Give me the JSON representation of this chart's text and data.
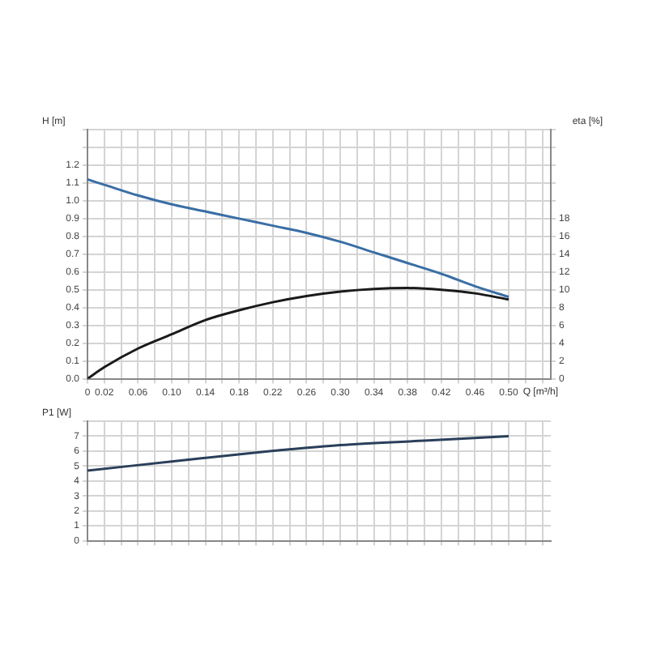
{
  "chart_data": [
    {
      "type": "line",
      "xlabel": "Q [m³/h]",
      "ylabel": "H [m]",
      "y2label": "eta [%]",
      "grid": true,
      "marker": "none",
      "line_style": "solid",
      "x": [
        0,
        0.02,
        0.06,
        0.1,
        0.14,
        0.18,
        0.22,
        0.26,
        0.3,
        0.34,
        0.38,
        0.42,
        0.46,
        0.5
      ],
      "series": [
        {
          "color": "#3a6ea5",
          "values": [
            1.12,
            1.09,
            1.03,
            0.98,
            0.94,
            0.9,
            0.86,
            0.82,
            0.77,
            0.71,
            0.65,
            0.59,
            0.52,
            0.46
          ]
        },
        {
          "color": "#1a1a1a",
          "axis": "y2",
          "values": [
            0,
            1.3,
            3.4,
            5.0,
            6.6,
            7.7,
            8.6,
            9.3,
            9.8,
            10.1,
            10.2,
            10.0,
            9.6,
            8.9
          ]
        }
      ],
      "xlim": [
        0,
        0.55
      ],
      "xticks": [
        {
          "value": 0,
          "label": "0"
        },
        {
          "value": 0.02,
          "label": "0.02"
        },
        {
          "value": 0.04,
          "label": null
        },
        {
          "value": 0.06,
          "label": "0.06"
        },
        {
          "value": 0.08,
          "label": null
        },
        {
          "value": 0.1,
          "label": "0.10"
        },
        {
          "value": 0.12,
          "label": null
        },
        {
          "value": 0.14,
          "label": "0.14"
        },
        {
          "value": 0.16,
          "label": null
        },
        {
          "value": 0.18,
          "label": "0.18"
        },
        {
          "value": 0.2,
          "label": null
        },
        {
          "value": 0.22,
          "label": "0.22"
        },
        {
          "value": 0.24,
          "label": null
        },
        {
          "value": 0.26,
          "label": "0.26"
        },
        {
          "value": 0.28,
          "label": null
        },
        {
          "value": 0.3,
          "label": "0.30"
        },
        {
          "value": 0.32,
          "label": null
        },
        {
          "value": 0.34,
          "label": "0.34"
        },
        {
          "value": 0.36,
          "label": null
        },
        {
          "value": 0.38,
          "label": "0.38"
        },
        {
          "value": 0.4,
          "label": null
        },
        {
          "value": 0.42,
          "label": "0.42"
        },
        {
          "value": 0.44,
          "label": null
        },
        {
          "value": 0.46,
          "label": "0.46"
        },
        {
          "value": 0.48,
          "label": null
        },
        {
          "value": 0.5,
          "label": "0.50"
        },
        {
          "value": 0.52,
          "label": null
        },
        {
          "value": 0.54,
          "label": null
        }
      ],
      "ylim": [
        0,
        1.4
      ],
      "yticks": [
        {
          "value": 0,
          "label": "0.0"
        },
        0.1,
        0.2,
        0.3,
        0.4,
        0.5,
        0.6,
        0.7,
        0.8,
        0.9,
        {
          "value": 1,
          "label": "1.0"
        },
        1.1,
        1.2,
        {
          "value": 1.3,
          "label": null
        },
        {
          "value": 1.4,
          "label": null
        }
      ],
      "y2lim": [
        0,
        28
      ],
      "y2ticks": [
        0,
        2,
        4,
        6,
        8,
        10,
        12,
        14,
        16,
        18,
        {
          "value": 20,
          "label": null
        },
        {
          "value": 22,
          "label": null
        },
        {
          "value": 24,
          "label": null
        },
        {
          "value": 26,
          "label": null
        },
        {
          "value": 28,
          "label": null
        }
      ]
    },
    {
      "type": "line",
      "ylabel": "P1 [W]",
      "grid": true,
      "marker": "none",
      "line_style": "solid",
      "tick_labels": "y",
      "x": [
        0,
        0.1,
        0.2,
        0.3,
        0.4,
        0.5
      ],
      "series": [
        {
          "color": "#2a3f5a",
          "values": [
            4.7,
            5.3,
            5.9,
            6.4,
            6.7,
            7.0
          ]
        }
      ],
      "xlim": [
        0,
        0.55
      ],
      "xticks": [
        0,
        0.02,
        0.04,
        0.06,
        0.08,
        0.1,
        0.12,
        0.14,
        0.16,
        0.18,
        0.2,
        0.22,
        0.24,
        0.26,
        0.28,
        0.3,
        0.32,
        0.34,
        0.36,
        0.38,
        0.4,
        0.42,
        0.44,
        0.46,
        0.48,
        0.5,
        0.52,
        0.54
      ],
      "ylim": [
        0,
        8
      ],
      "yticks": [
        0,
        1,
        2,
        3,
        4,
        5,
        6,
        7,
        {
          "value": 8,
          "label": null
        }
      ]
    }
  ]
}
